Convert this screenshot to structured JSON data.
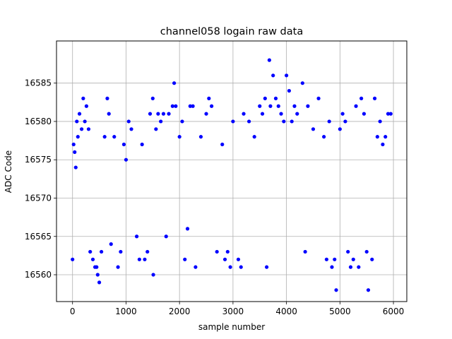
{
  "chart_data": {
    "type": "scatter",
    "title": "channel058 logain raw data",
    "xlabel": "sample number",
    "ylabel": "ADC Code",
    "xlim": [
      -300,
      6250
    ],
    "ylim": [
      16556.5,
      16590.5
    ],
    "x_ticks": [
      0,
      1000,
      2000,
      3000,
      4000,
      5000,
      6000
    ],
    "y_ticks": [
      16560,
      16565,
      16570,
      16575,
      16580,
      16585
    ],
    "x_tick_labels": [
      "0",
      "1000",
      "2000",
      "3000",
      "4000",
      "5000",
      "6000"
    ],
    "y_tick_labels": [
      "16560",
      "16565",
      "16570",
      "16575",
      "16580",
      "16585"
    ],
    "grid": true,
    "marker_color": "#0000ff",
    "series": [
      {
        "points": [
          [
            0,
            16562
          ],
          [
            20,
            16577
          ],
          [
            40,
            16576
          ],
          [
            60,
            16574
          ],
          [
            80,
            16580
          ],
          [
            100,
            16578
          ],
          [
            130,
            16581
          ],
          [
            170,
            16579
          ],
          [
            200,
            16583
          ],
          [
            230,
            16580
          ],
          [
            260,
            16582
          ],
          [
            300,
            16579
          ],
          [
            330,
            16563
          ],
          [
            380,
            16562
          ],
          [
            420,
            16561
          ],
          [
            450,
            16561
          ],
          [
            470,
            16560
          ],
          [
            500,
            16559
          ],
          [
            540,
            16563
          ],
          [
            600,
            16578
          ],
          [
            650,
            16583
          ],
          [
            680,
            16581
          ],
          [
            720,
            16564
          ],
          [
            780,
            16578
          ],
          [
            850,
            16561
          ],
          [
            900,
            16563
          ],
          [
            960,
            16577
          ],
          [
            1000,
            16575
          ],
          [
            1050,
            16580
          ],
          [
            1100,
            16579
          ],
          [
            1200,
            16565
          ],
          [
            1250,
            16562
          ],
          [
            1300,
            16577
          ],
          [
            1350,
            16562
          ],
          [
            1400,
            16563
          ],
          [
            1450,
            16581
          ],
          [
            1500,
            16583
          ],
          [
            1510,
            16560
          ],
          [
            1560,
            16579
          ],
          [
            1600,
            16581
          ],
          [
            1650,
            16580
          ],
          [
            1700,
            16581
          ],
          [
            1750,
            16565
          ],
          [
            1800,
            16581
          ],
          [
            1870,
            16582
          ],
          [
            1900,
            16585
          ],
          [
            1930,
            16582
          ],
          [
            2000,
            16578
          ],
          [
            2050,
            16580
          ],
          [
            2100,
            16562
          ],
          [
            2150,
            16566
          ],
          [
            2200,
            16582
          ],
          [
            2250,
            16582
          ],
          [
            2300,
            16561
          ],
          [
            2400,
            16578
          ],
          [
            2500,
            16581
          ],
          [
            2550,
            16583
          ],
          [
            2600,
            16582
          ],
          [
            2700,
            16563
          ],
          [
            2800,
            16577
          ],
          [
            2850,
            16562
          ],
          [
            2900,
            16563
          ],
          [
            2950,
            16561
          ],
          [
            3000,
            16580
          ],
          [
            3100,
            16562
          ],
          [
            3150,
            16561
          ],
          [
            3200,
            16581
          ],
          [
            3300,
            16580
          ],
          [
            3400,
            16578
          ],
          [
            3500,
            16582
          ],
          [
            3550,
            16581
          ],
          [
            3600,
            16583
          ],
          [
            3630,
            16561
          ],
          [
            3680,
            16588
          ],
          [
            3700,
            16582
          ],
          [
            3750,
            16586
          ],
          [
            3800,
            16583
          ],
          [
            3850,
            16582
          ],
          [
            3900,
            16581
          ],
          [
            3950,
            16580
          ],
          [
            4000,
            16586
          ],
          [
            4050,
            16584
          ],
          [
            4100,
            16580
          ],
          [
            4150,
            16582
          ],
          [
            4200,
            16581
          ],
          [
            4300,
            16585
          ],
          [
            4350,
            16563
          ],
          [
            4400,
            16582
          ],
          [
            4500,
            16579
          ],
          [
            4600,
            16583
          ],
          [
            4700,
            16578
          ],
          [
            4750,
            16562
          ],
          [
            4800,
            16580
          ],
          [
            4850,
            16561
          ],
          [
            4900,
            16562
          ],
          [
            4930,
            16558
          ],
          [
            5000,
            16579
          ],
          [
            5050,
            16581
          ],
          [
            5100,
            16580
          ],
          [
            5150,
            16563
          ],
          [
            5200,
            16561
          ],
          [
            5250,
            16562
          ],
          [
            5300,
            16582
          ],
          [
            5350,
            16561
          ],
          [
            5400,
            16583
          ],
          [
            5450,
            16581
          ],
          [
            5500,
            16563
          ],
          [
            5530,
            16558
          ],
          [
            5600,
            16562
          ],
          [
            5650,
            16583
          ],
          [
            5700,
            16578
          ],
          [
            5750,
            16580
          ],
          [
            5800,
            16577
          ],
          [
            5850,
            16578
          ],
          [
            5900,
            16581
          ],
          [
            5950,
            16581
          ]
        ]
      }
    ]
  }
}
